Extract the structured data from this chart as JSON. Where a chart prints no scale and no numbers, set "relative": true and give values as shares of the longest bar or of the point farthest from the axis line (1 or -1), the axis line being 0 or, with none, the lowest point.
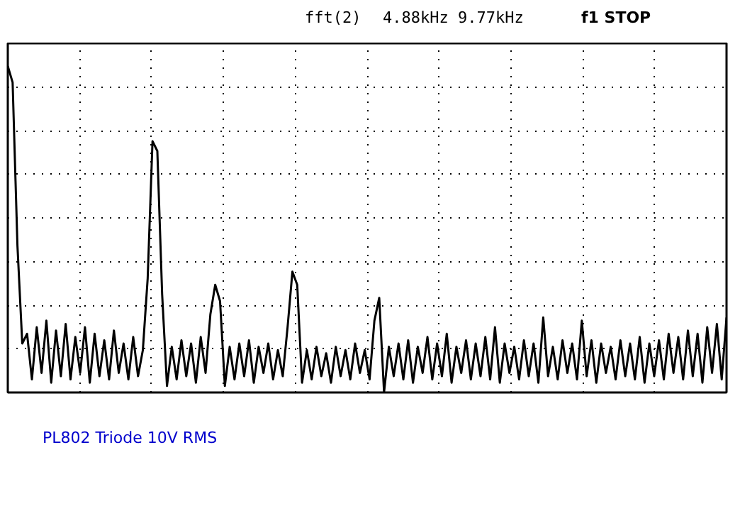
{
  "chart_data": {
    "type": "line",
    "title": "fft(2)",
    "subtitle": "4.88kHz 9.77kHz",
    "relative": true,
    "grid": true,
    "tick_labels": false,
    "annotations": [
      "f1 STOP",
      "PL802 Triode 10V RMS"
    ],
    "categories": [
      null,
      null,
      null,
      null,
      null,
      null,
      null,
      null,
      null,
      null,
      null,
      null,
      null,
      null,
      null,
      null,
      null,
      null,
      null,
      null,
      null,
      null,
      null,
      null,
      null,
      null,
      null,
      null,
      null,
      null,
      null,
      null,
      null,
      null,
      null,
      null,
      null,
      null,
      null,
      null,
      null,
      null,
      null,
      null,
      null,
      null,
      null,
      null,
      null,
      null,
      null,
      null,
      null,
      null,
      null,
      null,
      null,
      null,
      null,
      null,
      null,
      null,
      null,
      null,
      null,
      null,
      null,
      null,
      null,
      null,
      null,
      null,
      null,
      null,
      null,
      null,
      null,
      null,
      null,
      null,
      null,
      null,
      null,
      null,
      null,
      null,
      null,
      null,
      null,
      null,
      null,
      null,
      null,
      null,
      null,
      null,
      null,
      null,
      null,
      null,
      null,
      null,
      null,
      null,
      null,
      null,
      null,
      null,
      null,
      null,
      null,
      null,
      null,
      null,
      null,
      null,
      null,
      null,
      null,
      null,
      null,
      null,
      null,
      null,
      null,
      null,
      null,
      null,
      null,
      null,
      null,
      null,
      null,
      null,
      null,
      null,
      null,
      null,
      null,
      null,
      null,
      null,
      null,
      null,
      null,
      null,
      null,
      null,
      null,
      null
    ],
    "series": [
      {
        "color": "#000000",
        "values": [
          1.0,
          0.95,
          0.45,
          0.15,
          0.18,
          0.04,
          0.2,
          0.06,
          0.22,
          0.03,
          0.19,
          0.05,
          0.21,
          0.04,
          0.17,
          0.06,
          0.2,
          0.03,
          0.18,
          0.05,
          0.16,
          0.04,
          0.19,
          0.06,
          0.15,
          0.04,
          0.17,
          0.05,
          0.13,
          0.35,
          0.77,
          0.74,
          0.3,
          0.02,
          0.14,
          0.04,
          0.16,
          0.05,
          0.15,
          0.03,
          0.17,
          0.06,
          0.24,
          0.33,
          0.28,
          0.02,
          0.14,
          0.04,
          0.15,
          0.05,
          0.16,
          0.03,
          0.14,
          0.06,
          0.15,
          0.04,
          0.13,
          0.05,
          0.2,
          0.37,
          0.33,
          0.03,
          0.13,
          0.04,
          0.14,
          0.05,
          0.12,
          0.03,
          0.14,
          0.05,
          0.13,
          0.04,
          0.15,
          0.06,
          0.13,
          0.04,
          0.22,
          0.29,
          0.0,
          0.14,
          0.05,
          0.15,
          0.04,
          0.16,
          0.03,
          0.14,
          0.06,
          0.17,
          0.04,
          0.15,
          0.05,
          0.18,
          0.03,
          0.14,
          0.06,
          0.16,
          0.04,
          0.15,
          0.05,
          0.17,
          0.04,
          0.2,
          0.03,
          0.15,
          0.06,
          0.14,
          0.04,
          0.16,
          0.05,
          0.15,
          0.03,
          0.23,
          0.05,
          0.14,
          0.04,
          0.16,
          0.06,
          0.15,
          0.04,
          0.22,
          0.05,
          0.16,
          0.03,
          0.15,
          0.06,
          0.14,
          0.04,
          0.16,
          0.05,
          0.15,
          0.04,
          0.17,
          0.03,
          0.15,
          0.05,
          0.16,
          0.04,
          0.18,
          0.06,
          0.17,
          0.04,
          0.19,
          0.05,
          0.18,
          0.03,
          0.2,
          0.06,
          0.21,
          0.04,
          0.23
        ]
      }
    ]
  }
}
